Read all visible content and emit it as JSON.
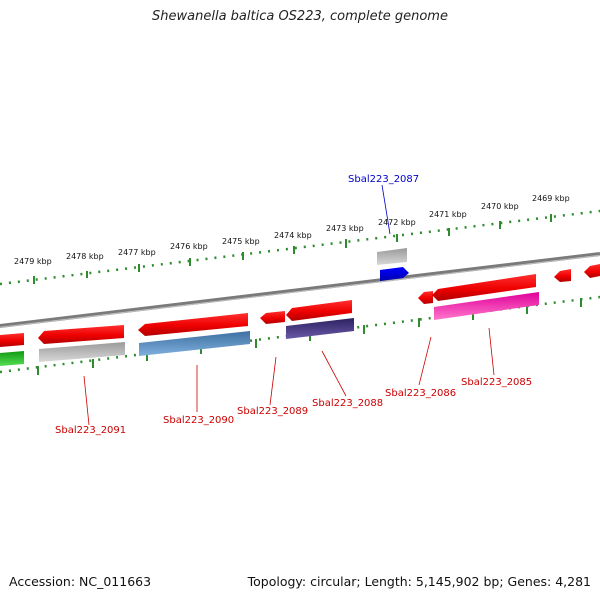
{
  "title": "Shewanella baltica OS223, complete genome",
  "footer": {
    "accession": "Accession: NC_011663",
    "summary": "Topology: circular; Length: 5,145,902 bp; Genes: 4,281"
  },
  "colors": {
    "backbone": "#8a8a8a",
    "tick": "#2e8b2e",
    "label_red": "#cc0000",
    "label_blue": "#0000cc"
  },
  "scale_labels": [
    "2479 kbp",
    "2478 kbp",
    "2477 kbp",
    "2476 kbp",
    "2475 kbp",
    "2474 kbp",
    "2473 kbp",
    "2472 kbp",
    "2471 kbp",
    "2470 kbp",
    "2469 kbp"
  ],
  "gene_labels": [
    {
      "text": "Sbal223_2087",
      "color": "blue"
    },
    {
      "text": "Sbal223_2091",
      "color": "red"
    },
    {
      "text": "Sbal223_2090",
      "color": "red"
    },
    {
      "text": "Sbal223_2089",
      "color": "red"
    },
    {
      "text": "Sbal223_2088",
      "color": "red"
    },
    {
      "text": "Sbal223_2086",
      "color": "red"
    },
    {
      "text": "Sbal223_2085",
      "color": "red"
    }
  ]
}
